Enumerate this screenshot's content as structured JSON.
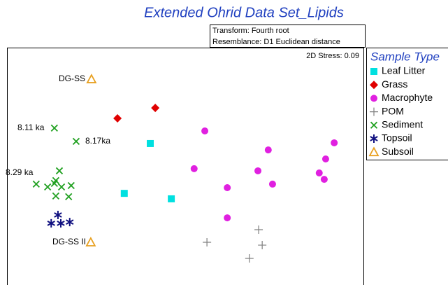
{
  "chart_data": {
    "type": "scatter",
    "title": "Extended Ohrid Data Set_Lipids",
    "subtitle_lines": [
      "Transform: Fourth root",
      "Resemblance: D1 Euclidean distance"
    ],
    "stress_label": "2D Stress: 0.09",
    "legend_title": "Sample Type",
    "legend_position": "outside-right",
    "xlim": [
      0,
      100
    ],
    "ylim": [
      0,
      100
    ],
    "series": [
      {
        "name": "Leaf Litter",
        "color": "#00e0e0",
        "marker": "square",
        "x": [
          40.2,
          32.9,
          46.1
        ],
        "y": [
          59.6,
          38.6,
          36.3
        ]
      },
      {
        "name": "Grass",
        "color": "#e00000",
        "marker": "diamond",
        "x": [
          31.0,
          41.6
        ],
        "y": [
          70.2,
          74.6
        ]
      },
      {
        "name": "Macrophyte",
        "color": "#e020e0",
        "marker": "circle",
        "x": [
          55.5,
          73.3,
          91.8,
          89.4,
          52.5,
          70.4,
          87.6,
          89.0,
          61.8,
          74.5,
          61.8
        ],
        "y": [
          64.9,
          56.9,
          59.9,
          53.1,
          49.0,
          48.1,
          47.2,
          44.5,
          41.0,
          42.5,
          28.3
        ]
      },
      {
        "name": "POM",
        "color": "#808080",
        "marker": "plus",
        "x": [
          70.6,
          71.6,
          56.1,
          68.0
        ],
        "y": [
          23.3,
          16.8,
          18.0,
          11.2
        ]
      },
      {
        "name": "Sediment",
        "color": "#20a020",
        "marker": "cross",
        "x": [
          13.3,
          19.4,
          14.7,
          13.7,
          8.2,
          13.3,
          15.3,
          18.0,
          11.4,
          17.3,
          13.7
        ],
        "y": [
          66.1,
          60.5,
          48.1,
          44.0,
          42.5,
          42.8,
          41.3,
          41.9,
          41.3,
          37.2,
          37.5
        ]
      },
      {
        "name": "Topsoil",
        "color": "#101080",
        "marker": "asterisk",
        "x": [
          14.3,
          12.4,
          15.1,
          17.6
        ],
        "y": [
          29.5,
          26.0,
          26.0,
          26.5
        ]
      },
      {
        "name": "Subsoil",
        "color": "#e8a020",
        "marker": "triangle",
        "x": [
          23.7,
          23.5
        ],
        "y": [
          86.7,
          18.0
        ]
      }
    ],
    "annotations": [
      "DG-SS",
      "8.11 ka",
      "8.17ka",
      "8.29 ka",
      "DG-SS II"
    ]
  }
}
